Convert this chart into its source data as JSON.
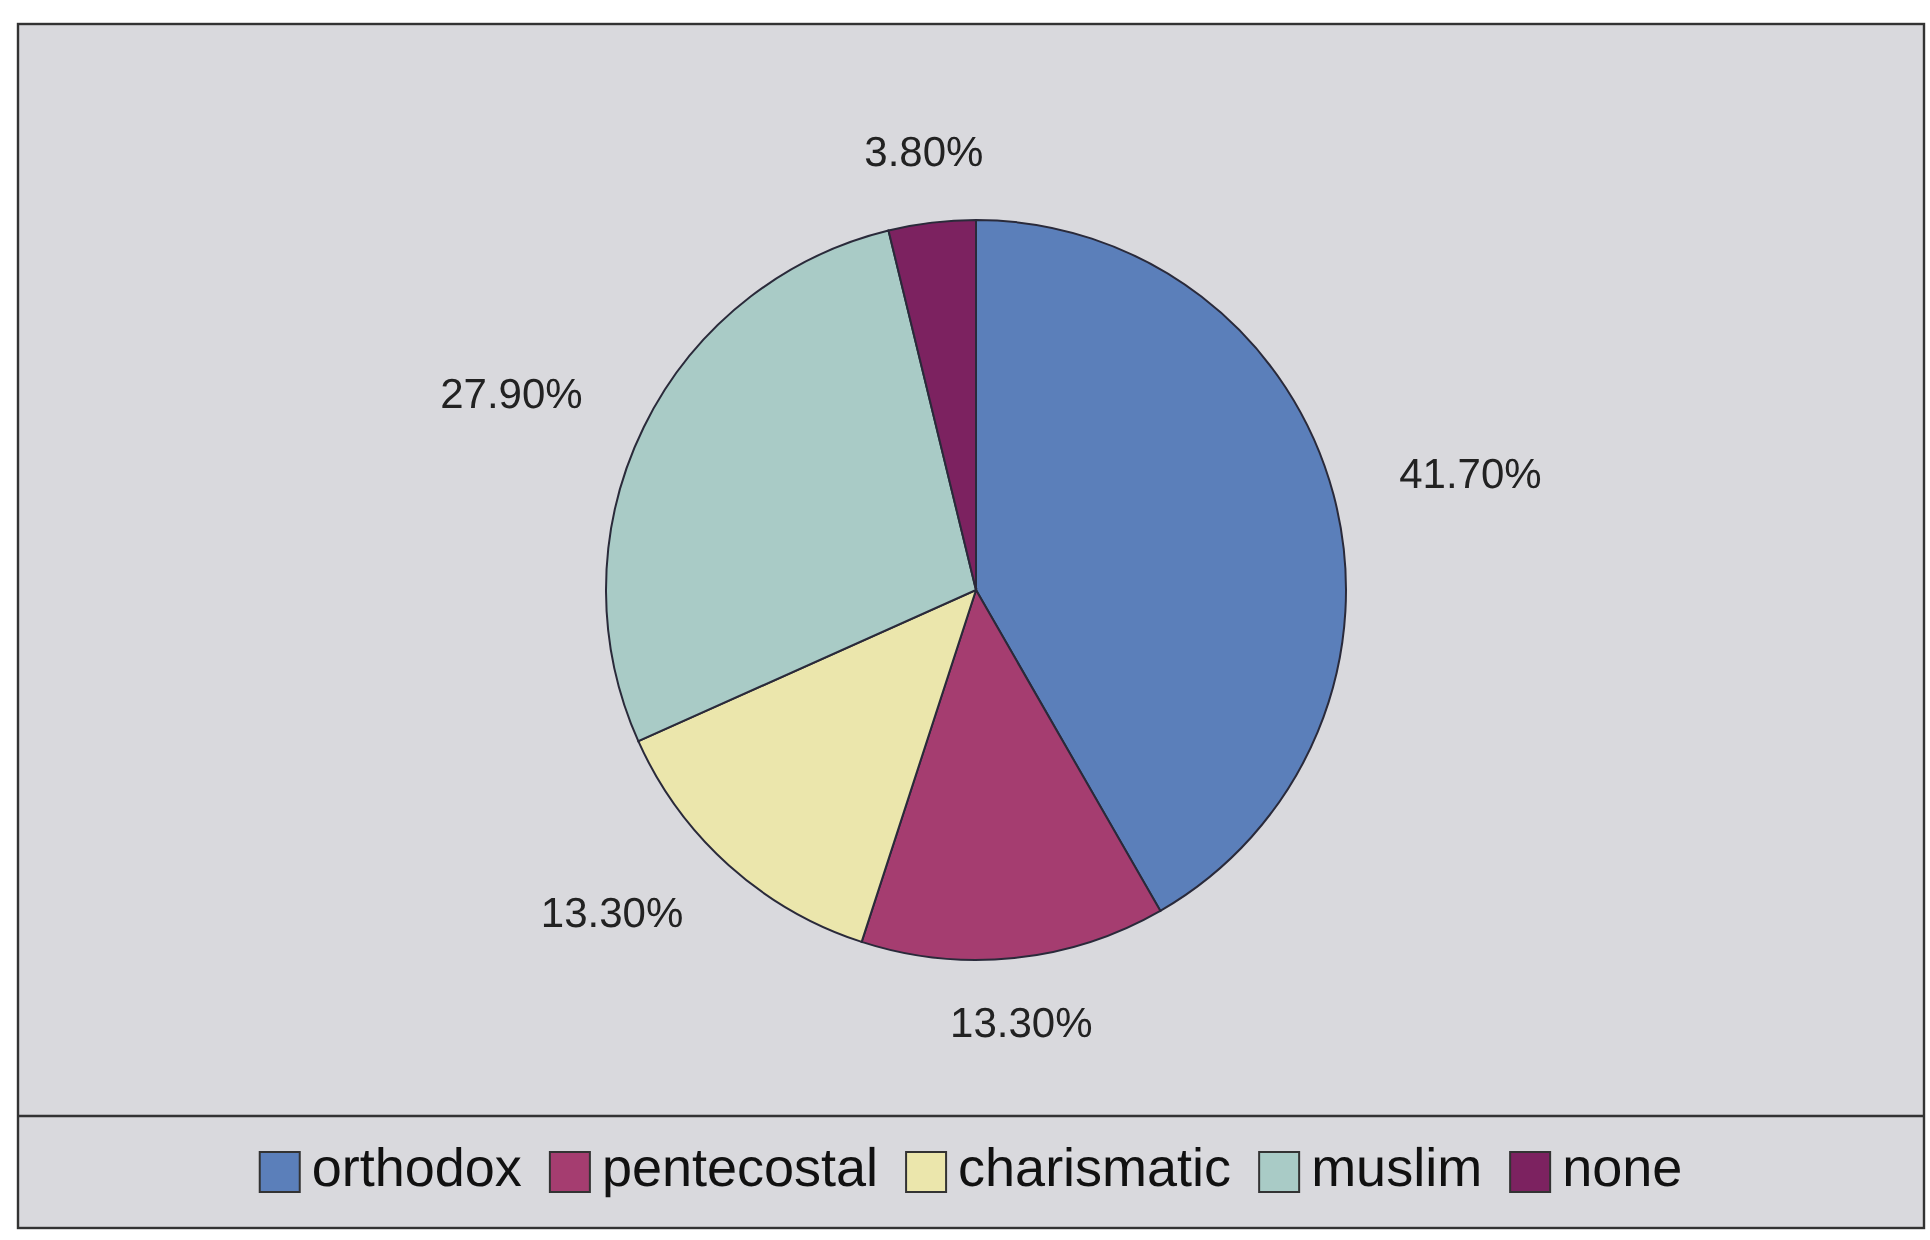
{
  "chart_data": {
    "type": "pie",
    "categories": [
      "orthodox",
      "pentecostal",
      "charismatic",
      "muslim",
      "none"
    ],
    "values": [
      41.7,
      13.3,
      13.3,
      27.9,
      3.8
    ],
    "colors": [
      "#5b7fba",
      "#a53d70",
      "#ebe6ac",
      "#a9cbc6",
      "#7c2260"
    ],
    "value_labels": [
      "41.70%",
      "13.30%",
      "13.30%",
      "27.90%",
      "3.80%"
    ],
    "legend": "bottom"
  }
}
